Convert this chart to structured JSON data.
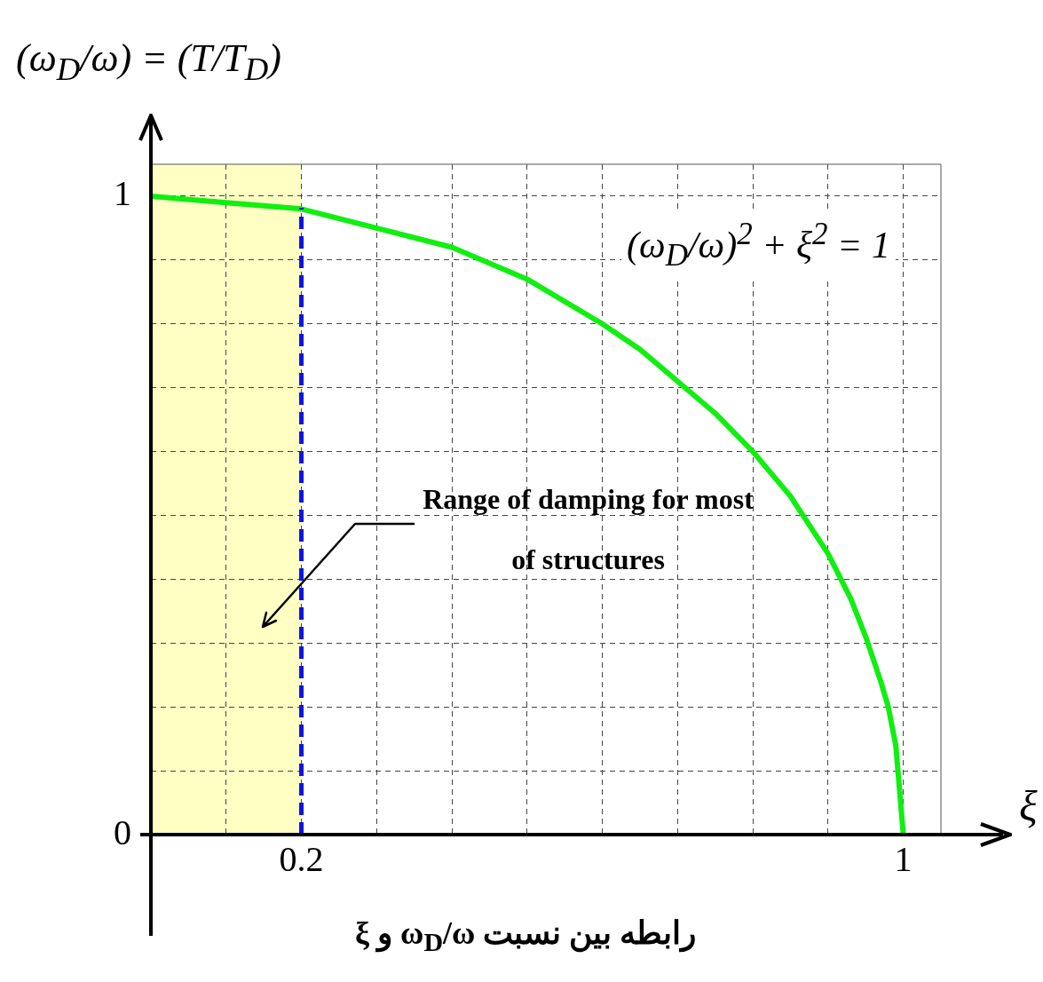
{
  "chart_data": {
    "type": "line",
    "xlabel": "ξ",
    "ylabel": "(ω$_{D}$/ω) = (T/T$_{D}$)",
    "x": [
      0,
      0.1,
      0.2,
      0.3,
      0.4,
      0.5,
      0.6,
      0.65,
      0.7,
      0.75,
      0.8,
      0.85,
      0.9,
      0.93,
      0.95,
      0.97,
      0.98,
      0.99,
      1
    ],
    "series": [
      {
        "color": "#11ee11",
        "values": [
          1,
          0.99,
          0.98,
          0.95,
          0.92,
          0.87,
          0.8,
          0.76,
          0.71,
          0.66,
          0.6,
          0.53,
          0.44,
          0.37,
          0.31,
          0.24,
          0.2,
          0.14,
          0
        ]
      }
    ],
    "xlim": [
      0,
      1.05
    ],
    "ylim": [
      0,
      1.05
    ],
    "xticks": [
      {
        "value": 0,
        "label": null
      },
      {
        "value": 0.1,
        "label": null
      },
      0.2,
      {
        "value": 0.3,
        "label": null
      },
      {
        "value": 0.4,
        "label": null
      },
      {
        "value": 0.5,
        "label": null
      },
      {
        "value": 0.6,
        "label": null
      },
      {
        "value": 0.7,
        "label": null
      },
      {
        "value": 0.8,
        "label": null
      },
      {
        "value": 0.9,
        "label": null
      },
      1
    ],
    "yticks": [
      0,
      {
        "value": 0.1,
        "label": null
      },
      {
        "value": 0.2,
        "label": null
      },
      {
        "value": 0.3,
        "label": null
      },
      {
        "value": 0.4,
        "label": null
      },
      {
        "value": 0.5,
        "label": null
      },
      {
        "value": 0.6,
        "label": null
      },
      {
        "value": 0.7,
        "label": null
      },
      {
        "value": 0.8,
        "label": null
      },
      {
        "value": 0.9,
        "label": null
      },
      1
    ],
    "grid": true,
    "marker": "none",
    "line_style": "solid",
    "ref_lines": [
      {
        "axis": "x",
        "value": 0.2,
        "color": "#0a14e6",
        "line_style": "dashed"
      }
    ],
    "bands": [
      {
        "axis": "x",
        "from": 0,
        "to": 0.2,
        "color": "#ffffc4"
      }
    ],
    "annotations": [
      "(ω$_{D}$/ω)$^{2}$ + ξ$^{2}$ = 1",
      "Range of damping for most of structures",
      "رابطه بین نسبت ω$_{D}$/ω و ξ"
    ]
  }
}
